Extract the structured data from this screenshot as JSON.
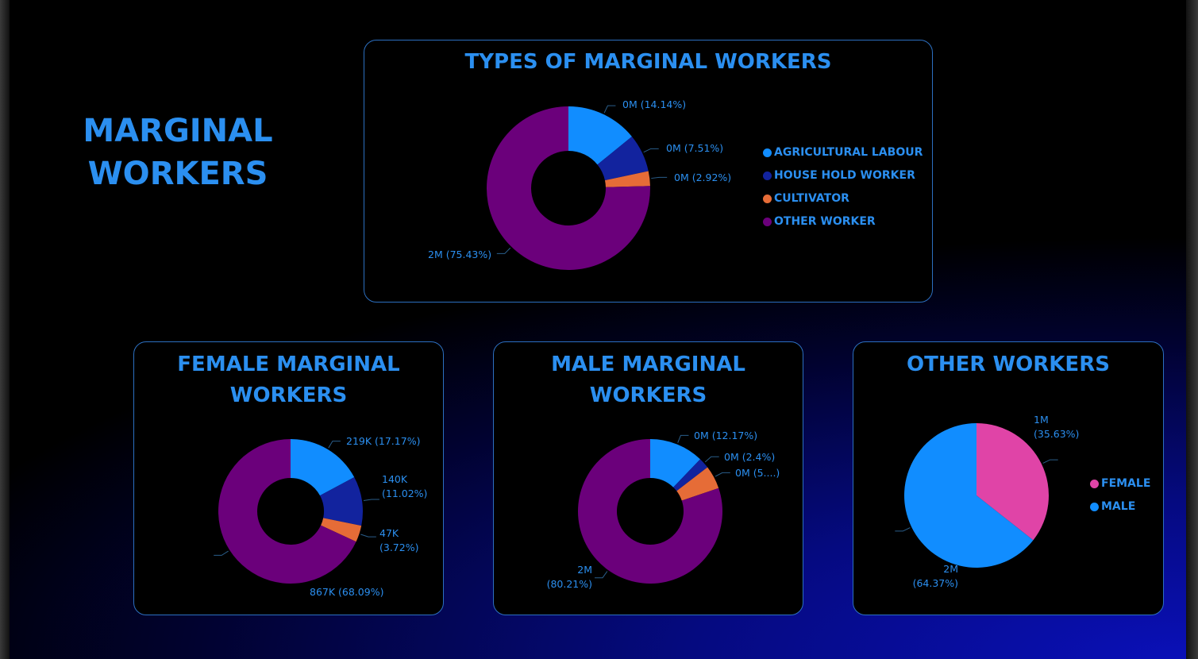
{
  "page_title": [
    "MARGINAL",
    "WORKERS"
  ],
  "colors": {
    "agri": "#118DFF",
    "household": "#12239E",
    "cultivator": "#E66C37",
    "other": "#6B007B",
    "female": "#E044A7",
    "male": "#118DFF"
  },
  "chart_data": [
    {
      "type": "donut",
      "title": "TYPES OF MARGINAL WORKERS",
      "categories": [
        "AGRICULTURAL LABOUR",
        "HOUSE HOLD WORKER",
        "CULTIVATOR",
        "OTHER WORKER"
      ],
      "values": [
        14.14,
        7.51,
        2.92,
        75.43
      ],
      "labels": [
        "0M (14.14%)",
        "0M (7.51%)",
        "0M (2.92%)",
        "2M (75.43%)"
      ],
      "legend": "right"
    },
    {
      "type": "donut",
      "title": "FEMALE MARGINAL WORKERS",
      "categories": [
        "AGRICULTURAL LABOUR",
        "HOUSE HOLD WORKER",
        "CULTIVATOR",
        "OTHER WORKER"
      ],
      "values": [
        17.17,
        11.02,
        3.72,
        68.09
      ],
      "labels": [
        "219K (17.17%)",
        "140K (11.02%)",
        "47K (3.72%)",
        "867K (68.09%)"
      ]
    },
    {
      "type": "donut",
      "title": "MALE MARGINAL WORKERS",
      "categories": [
        "AGRICULTURAL LABOUR",
        "HOUSE HOLD WORKER",
        "CULTIVATOR",
        "OTHER WORKER"
      ],
      "values": [
        12.17,
        2.4,
        5.22,
        80.21
      ],
      "labels": [
        "0M (12.17%)",
        "0M (2.4%)",
        "0M (5....)",
        "2M (80.21%)"
      ]
    },
    {
      "type": "pie",
      "title": "OTHER WORKERS",
      "categories": [
        "FEMALE",
        "MALE"
      ],
      "values": [
        35.63,
        64.37
      ],
      "labels": [
        "1M (35.63%)",
        "2M (64.37%)"
      ],
      "legend": "right"
    }
  ]
}
